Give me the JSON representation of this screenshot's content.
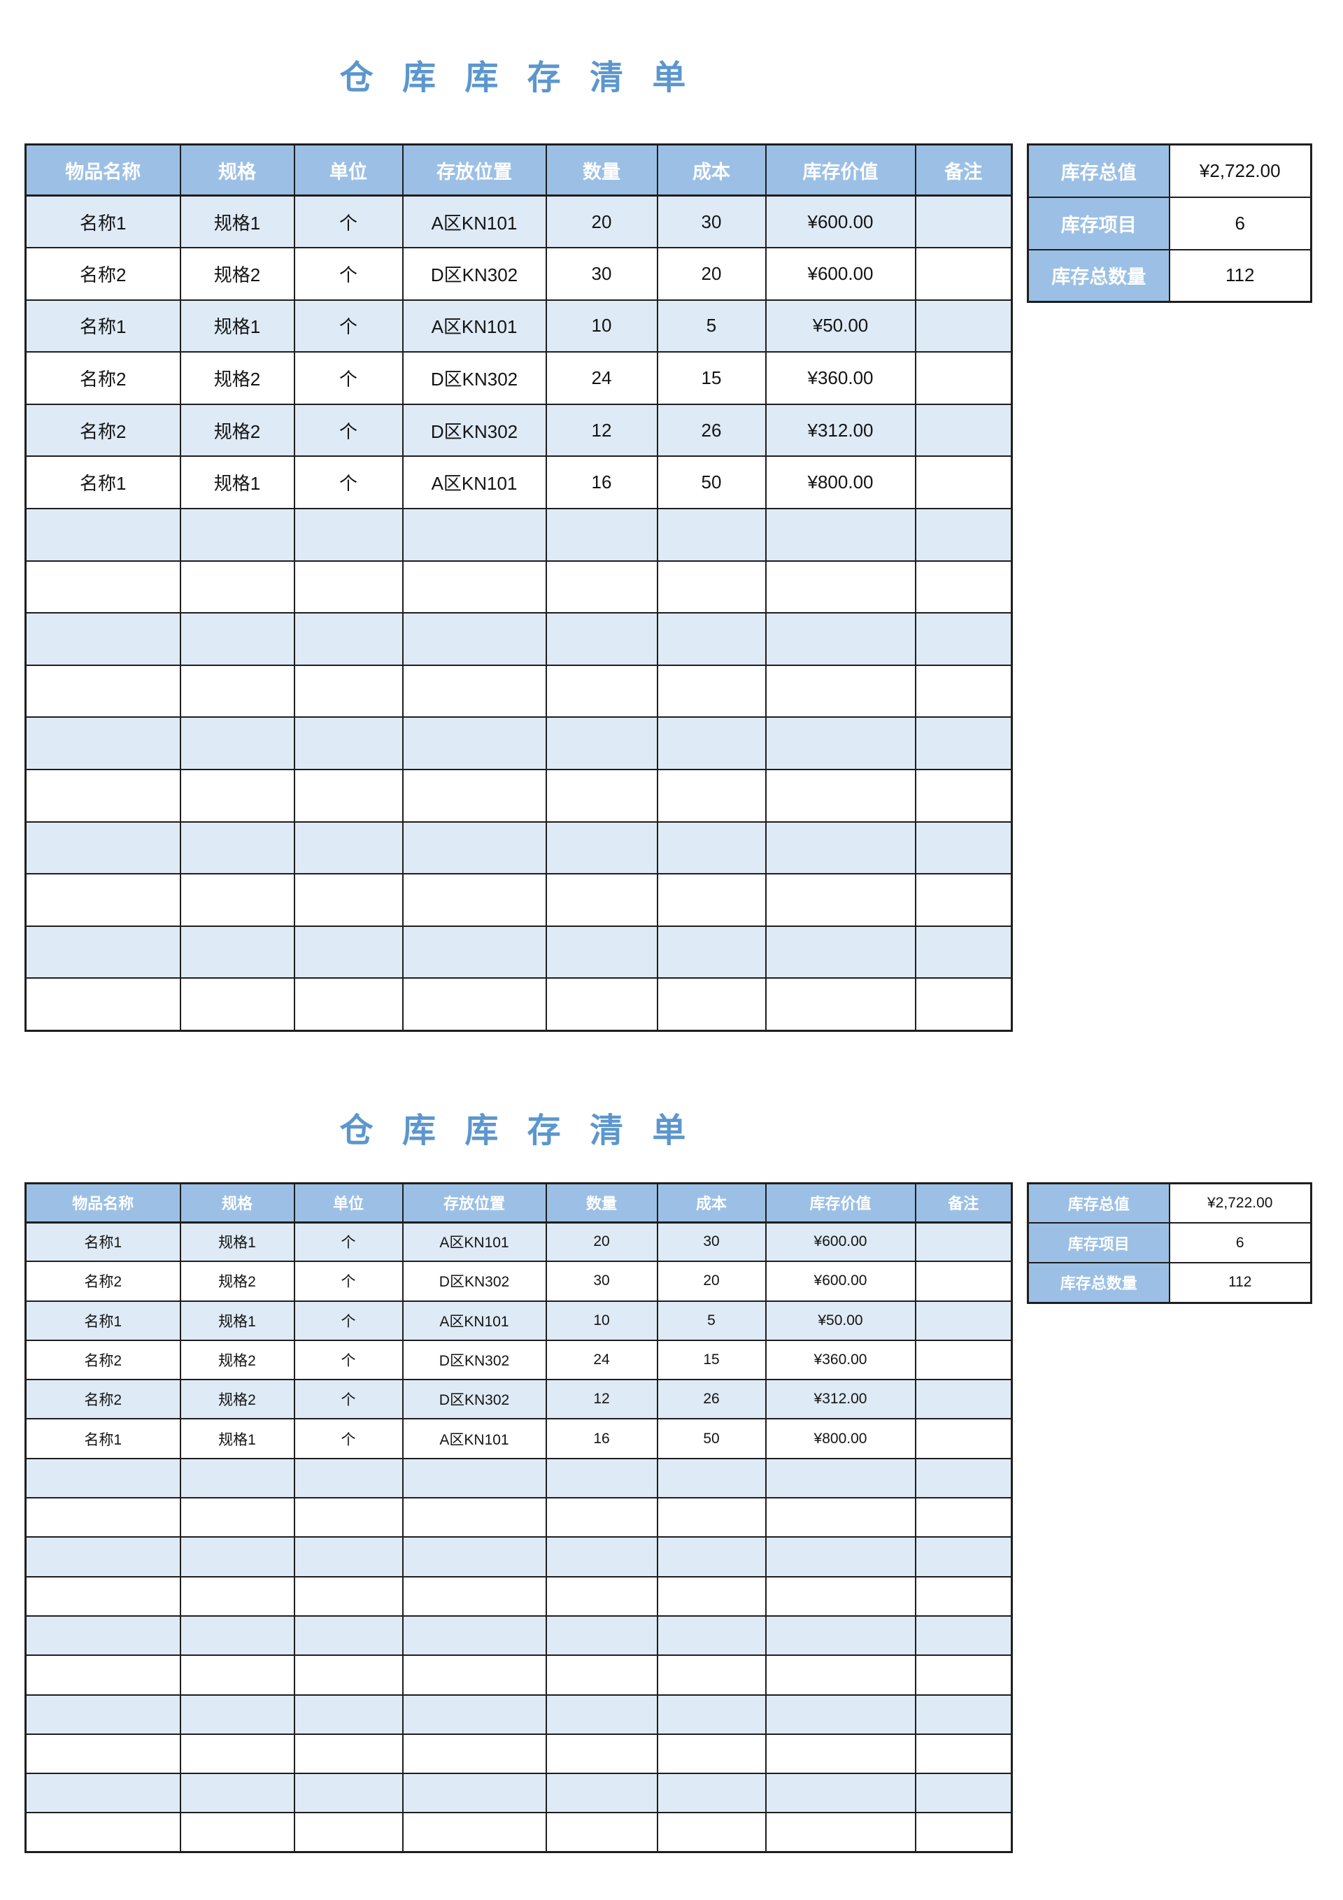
{
  "page": {
    "title": "仓 库 库 存 清 单"
  },
  "table": {
    "columns": [
      "物品名称",
      "规格",
      "单位",
      "存放位置",
      "数量",
      "成本",
      "库存价值",
      "备注"
    ],
    "rows": [
      [
        "名称1",
        "规格1",
        "个",
        "A区KN101",
        "20",
        "30",
        "¥600.00",
        ""
      ],
      [
        "名称2",
        "规格2",
        "个",
        "D区KN302",
        "30",
        "20",
        "¥600.00",
        ""
      ],
      [
        "名称1",
        "规格1",
        "个",
        "A区KN101",
        "10",
        "5",
        "¥50.00",
        ""
      ],
      [
        "名称2",
        "规格2",
        "个",
        "D区KN302",
        "24",
        "15",
        "¥360.00",
        ""
      ],
      [
        "名称2",
        "规格2",
        "个",
        "D区KN302",
        "12",
        "26",
        "¥312.00",
        ""
      ],
      [
        "名称1",
        "规格1",
        "个",
        "A区KN101",
        "16",
        "50",
        "¥800.00",
        ""
      ]
    ],
    "empty_row_count": 10
  },
  "summary": {
    "rows": [
      {
        "label": "库存总值",
        "value": "¥2,722.00"
      },
      {
        "label": "库存项目",
        "value": "6"
      },
      {
        "label": "库存总数量",
        "value": "112"
      }
    ]
  },
  "colors": {
    "title_text": "#5C96CE",
    "header_bg": "#9CC0E5",
    "row_alt_bg": "#DEEAF5",
    "header_text": "#FFFFFF",
    "cell_text": "#141414",
    "border": "#1E1E1E",
    "page_bg": "#FFFFFF"
  }
}
